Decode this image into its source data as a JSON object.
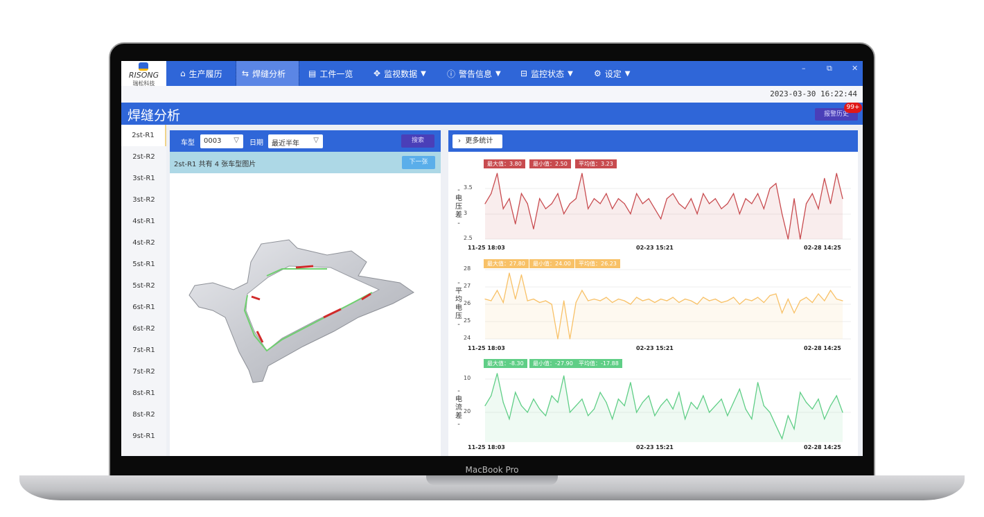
{
  "device": {
    "label": "MacBook Pro"
  },
  "app": {
    "logo_text": "RISONG",
    "logo_sub": "瑞松科技",
    "nav": [
      {
        "label": "生产履历",
        "icon": "home-icon"
      },
      {
        "label": "焊缝分析",
        "icon": "swap-icon",
        "active": true
      },
      {
        "label": "工件一览",
        "icon": "document-icon"
      },
      {
        "label": "监视数据",
        "icon": "move-icon",
        "dropdown": true
      },
      {
        "label": "警告信息",
        "icon": "info-icon",
        "dropdown": true
      },
      {
        "label": "监控状态",
        "icon": "minus-square-icon",
        "dropdown": true
      },
      {
        "label": "设定",
        "icon": "gear-icon",
        "dropdown": true
      }
    ],
    "window": {
      "minimize": "–",
      "restore": "⧉",
      "close": "✕"
    },
    "datetime": "2023-03-30  16:22:44",
    "page_title": "焊缝分析",
    "alarm_history": "报警历史",
    "alarm_badge": "99+",
    "colors": {
      "primary": "#2f66d8",
      "purple": "#4a3fb8",
      "red": "#c84b4f",
      "orange": "#f8c167",
      "green": "#5fce86"
    }
  },
  "sidebar": {
    "items": [
      "2st-R1",
      "2st-R2",
      "3st-R1",
      "3st-R2",
      "4st-R1",
      "4st-R2",
      "5st-R1",
      "5st-R2",
      "6st-R1",
      "6st-R2",
      "7st-R1",
      "7st-R2",
      "8st-R1",
      "8st-R2",
      "9st-R1"
    ],
    "active": "2st-R1"
  },
  "filter": {
    "model_label": "车型",
    "model_value": "0003",
    "date_label": "日期",
    "date_value": "最近半年",
    "search": "搜索"
  },
  "info": {
    "text": "2st-R1 共有 4 张车型图片",
    "next": "下一张"
  },
  "stats_button": "更多统计",
  "chart_data": [
    {
      "type": "area",
      "ylabel": "电压差",
      "stats": [
        "最大值：3.80",
        "最小值：2.50",
        "平均值：3.23"
      ],
      "color": "#c84b4f",
      "yticks": [
        "3.5",
        "3",
        "2.5"
      ],
      "ylim": [
        2.5,
        3.75
      ],
      "xticks": [
        "11-25 18:03",
        "02-23 15:21",
        "02-28 14:25"
      ],
      "values": [
        3.2,
        3.4,
        3.8,
        3.1,
        3.3,
        2.8,
        3.4,
        3.2,
        2.7,
        3.3,
        3.1,
        3.2,
        3.4,
        3.0,
        3.2,
        3.3,
        3.8,
        3.1,
        3.3,
        3.2,
        3.4,
        3.1,
        3.3,
        3.2,
        3.0,
        3.4,
        3.2,
        3.3,
        3.1,
        2.9,
        3.3,
        3.4,
        3.2,
        3.1,
        3.3,
        3.0,
        3.4,
        3.2,
        3.3,
        3.1,
        3.2,
        3.4,
        3.0,
        3.3,
        3.2,
        3.4,
        3.1,
        3.5,
        3.6,
        3.0,
        2.5,
        3.3,
        2.5,
        3.2,
        3.4,
        3.1,
        3.7,
        3.2,
        3.8,
        3.3
      ]
    },
    {
      "type": "area",
      "ylabel": "平均电压",
      "stats": [
        "最大值：27.80",
        "最小值：24.00",
        "平均值：26.23"
      ],
      "color": "#f8c167",
      "yticks": [
        "28",
        "27",
        "26",
        "25",
        "24"
      ],
      "ylim": [
        24,
        28
      ],
      "xticks": [
        "11-25 18:03",
        "02-23 15:21",
        "02-28 14:25"
      ],
      "values": [
        26.3,
        26.2,
        26.8,
        26.1,
        27.8,
        26.3,
        27.7,
        26.2,
        26.3,
        26.1,
        26.2,
        26.0,
        24.0,
        26.2,
        24.0,
        26.1,
        26.8,
        26.2,
        26.3,
        26.2,
        26.4,
        26.1,
        26.3,
        26.2,
        26.0,
        26.4,
        26.2,
        26.3,
        26.1,
        26.3,
        26.2,
        26.4,
        26.1,
        26.3,
        26.2,
        26.0,
        26.4,
        26.2,
        26.3,
        26.1,
        26.2,
        26.4,
        26.0,
        26.3,
        26.2,
        26.4,
        26.1,
        26.5,
        26.6,
        25.5,
        26.3,
        25.5,
        26.2,
        26.4,
        26.1,
        26.6,
        26.2,
        26.8,
        26.3,
        26.2
      ]
    },
    {
      "type": "area",
      "ylabel": "电流差",
      "stats": [
        "最大值：-8.30",
        "最小值：-27.90",
        "平均值：-17.88"
      ],
      "color": "#5fce86",
      "yticks": [
        "10",
        "20"
      ],
      "ylim": [
        -8,
        -29
      ],
      "xticks": [
        "11-25 18:03",
        "02-23 15:21",
        "02-28 14:25"
      ],
      "values": [
        -18,
        -15,
        -8.3,
        -17,
        -22,
        -14,
        -18,
        -20,
        -16,
        -19,
        -21,
        -15,
        -17,
        -9,
        -20,
        -18,
        -16,
        -21,
        -19,
        -14,
        -17,
        -22,
        -16,
        -18,
        -11,
        -20,
        -17,
        -15,
        -21,
        -18,
        -16,
        -19,
        -14,
        -22,
        -17,
        -19,
        -15,
        -20,
        -18,
        -16,
        -21,
        -17,
        -13,
        -19,
        -22,
        -11,
        -18,
        -20,
        -24,
        -27.9,
        -21,
        -25,
        -14,
        -17,
        -19,
        -16,
        -22,
        -18,
        -15,
        -20
      ]
    }
  ]
}
